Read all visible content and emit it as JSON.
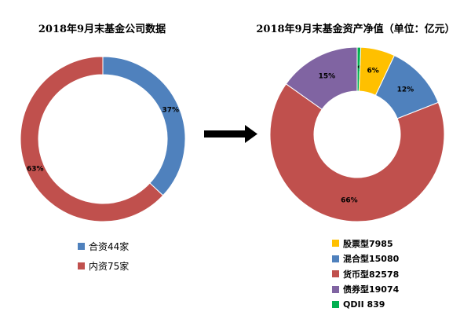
{
  "chart_data": [
    {
      "type": "pie",
      "donut": true,
      "title": "2018年9月末基金公司数据",
      "start_angle": 0,
      "slices": [
        {
          "label": "合资",
          "legend": "合资44家",
          "value": 44,
          "percent_label": "37%",
          "color": "#4F81BD"
        },
        {
          "label": "内资",
          "legend": "内资75家",
          "value": 75,
          "percent_label": "63%",
          "color": "#C0504D"
        }
      ],
      "legend_placement": "bottom"
    },
    {
      "type": "pie",
      "donut": true,
      "title": "2018年9月末基金资产净值（单位：亿元）",
      "start_angle": 0,
      "slices": [
        {
          "label": "QDII",
          "legend": "QDII 839",
          "value": 839,
          "percent_label": "1%",
          "color": "#00B050"
        },
        {
          "label": "股票型",
          "legend": "股票型7985",
          "value": 7985,
          "percent_label": "6%",
          "color": "#FFC000"
        },
        {
          "label": "混合型",
          "legend": "混合型15080",
          "value": 15080,
          "percent_label": "12%",
          "color": "#4F81BD"
        },
        {
          "label": "货币型",
          "legend": "货币型82578",
          "value": 82578,
          "percent_label": "66%",
          "color": "#C0504D"
        },
        {
          "label": "债券型",
          "legend": "债券型19074",
          "value": 19074,
          "percent_label": "15%",
          "color": "#8064A2"
        }
      ],
      "legend_order": [
        "股票型",
        "混合型",
        "货币型",
        "债券型",
        "QDII"
      ],
      "legend_placement": "bottom"
    }
  ],
  "arrow_color": "#000000"
}
